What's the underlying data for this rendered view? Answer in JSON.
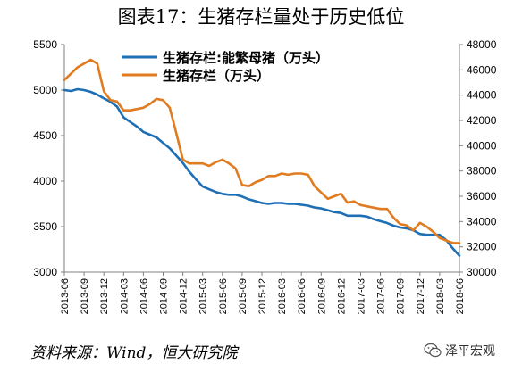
{
  "title": "图表17：生猪存栏量处于历史低位",
  "source": "资料来源：Wind，恒大研究院",
  "watermark": "泽平宏观",
  "chart_data": {
    "type": "line",
    "title": "图表17：生猪存栏量处于历史低位",
    "x_ticks": [
      "2013-06",
      "2013-09",
      "2013-12",
      "2014-03",
      "2014-06",
      "2014-09",
      "2014-12",
      "2015-03",
      "2015-06",
      "2015-09",
      "2015-12",
      "2016-03",
      "2016-06",
      "2016-09",
      "2016-12",
      "2017-03",
      "2017-06",
      "2017-09",
      "2017-12",
      "2018-03",
      "2018-06"
    ],
    "y_left": {
      "min": 3000,
      "max": 5500,
      "step": 500
    },
    "y_right": {
      "min": 30000,
      "max": 48000,
      "step": 2000
    },
    "grid": false,
    "legend_position": "top-center",
    "series": [
      {
        "name": "生猪存栏:能繁母猪（万头）",
        "axis": "left",
        "color": "#1f6fb5",
        "x": [
          "2013-06",
          "2013-07",
          "2013-08",
          "2013-09",
          "2013-10",
          "2013-11",
          "2013-12",
          "2014-01",
          "2014-02",
          "2014-03",
          "2014-04",
          "2014-05",
          "2014-06",
          "2014-07",
          "2014-08",
          "2014-09",
          "2014-10",
          "2014-11",
          "2014-12",
          "2015-01",
          "2015-02",
          "2015-03",
          "2015-04",
          "2015-05",
          "2015-06",
          "2015-07",
          "2015-08",
          "2015-09",
          "2015-10",
          "2015-11",
          "2015-12",
          "2016-01",
          "2016-02",
          "2016-03",
          "2016-04",
          "2016-05",
          "2016-06",
          "2016-07",
          "2016-08",
          "2016-09",
          "2016-10",
          "2016-11",
          "2016-12",
          "2017-01",
          "2017-02",
          "2017-03",
          "2017-04",
          "2017-05",
          "2017-06",
          "2017-07",
          "2017-08",
          "2017-09",
          "2017-10",
          "2017-11",
          "2017-12",
          "2018-01",
          "2018-02",
          "2018-03",
          "2018-04",
          "2018-05",
          "2018-06"
        ],
        "values": [
          5000,
          4990,
          5010,
          5000,
          4980,
          4950,
          4910,
          4870,
          4820,
          4700,
          4650,
          4600,
          4540,
          4510,
          4480,
          4420,
          4360,
          4280,
          4200,
          4100,
          4020,
          3940,
          3910,
          3880,
          3860,
          3850,
          3850,
          3830,
          3800,
          3780,
          3760,
          3750,
          3760,
          3760,
          3750,
          3750,
          3740,
          3730,
          3710,
          3700,
          3680,
          3660,
          3650,
          3620,
          3620,
          3620,
          3610,
          3580,
          3560,
          3540,
          3510,
          3490,
          3480,
          3460,
          3420,
          3410,
          3410,
          3410,
          3350,
          3260,
          3180
        ]
      },
      {
        "name": "生猪存栏（万头）",
        "axis": "right",
        "color": "#e07b20",
        "x": [
          "2013-06",
          "2013-07",
          "2013-08",
          "2013-09",
          "2013-10",
          "2013-11",
          "2013-12",
          "2014-01",
          "2014-02",
          "2014-03",
          "2014-04",
          "2014-05",
          "2014-06",
          "2014-07",
          "2014-08",
          "2014-09",
          "2014-10",
          "2014-11",
          "2014-12",
          "2015-01",
          "2015-02",
          "2015-03",
          "2015-04",
          "2015-05",
          "2015-06",
          "2015-07",
          "2015-08",
          "2015-09",
          "2015-10",
          "2015-11",
          "2015-12",
          "2016-01",
          "2016-02",
          "2016-03",
          "2016-04",
          "2016-05",
          "2016-06",
          "2016-07",
          "2016-08",
          "2016-09",
          "2016-10",
          "2016-11",
          "2016-12",
          "2017-01",
          "2017-02",
          "2017-03",
          "2017-04",
          "2017-05",
          "2017-06",
          "2017-07",
          "2017-08",
          "2017-09",
          "2017-10",
          "2017-11",
          "2017-12",
          "2018-01",
          "2018-02",
          "2018-03",
          "2018-04",
          "2018-05",
          "2018-06"
        ],
        "values": [
          45200,
          45700,
          46200,
          46500,
          46800,
          46500,
          44300,
          43600,
          43500,
          42800,
          42800,
          42900,
          43000,
          43300,
          43700,
          43600,
          43000,
          41000,
          38900,
          38600,
          38600,
          38600,
          38400,
          38700,
          38900,
          38600,
          38200,
          36900,
          36800,
          37100,
          37300,
          37600,
          37600,
          37800,
          37700,
          37800,
          37800,
          37700,
          36800,
          36300,
          35800,
          36000,
          36200,
          35500,
          35600,
          35300,
          35200,
          35100,
          35000,
          35000,
          34300,
          33800,
          33700,
          33300,
          33900,
          33600,
          33200,
          32700,
          32500,
          32300,
          32300
        ]
      }
    ]
  }
}
